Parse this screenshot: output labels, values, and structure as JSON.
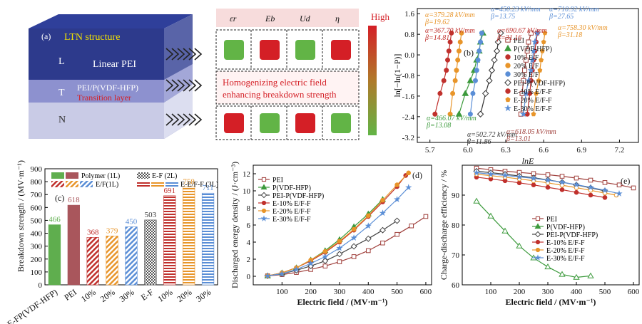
{
  "panel_a": {
    "tag": "(a)",
    "layers": [
      {
        "letter": "L",
        "name": "Linear PEI"
      },
      {
        "letter": "T",
        "name": "PEI/P(VDF-HFP)",
        "sub": "Transition layer"
      },
      {
        "letter": "N",
        "name": ""
      }
    ],
    "structure_label": "LTN structure",
    "params": [
      "εr",
      "Eb",
      "Ud",
      "η"
    ],
    "high_label": "High",
    "message_line1": "Homogenizing electric field",
    "message_line2": "enhancing breakdown strength",
    "rows": [
      [
        "#62b446",
        "#d41f26",
        "#62b446",
        "#d41f26"
      ],
      [
        "#d41f26",
        "#62b446",
        "#d41f26",
        "#62b446"
      ]
    ],
    "colors": {
      "good": "#62b446",
      "bad": "#d41f26",
      "top_face": "#3f4fa8",
      "front_dark": "#2d3a8c"
    }
  },
  "chart_data": [
    {
      "type": "scatter",
      "panel": "(b)",
      "xlabel": "lnE",
      "ylabel": "ln[−ln(1−P)]",
      "xlim": [
        5.6,
        7.35
      ],
      "ylim": [
        -3.4,
        1.8
      ],
      "xticks": [
        "5.7",
        "6.0",
        "6.3",
        "6.6",
        "6.9",
        "7.2"
      ],
      "xtick_values": [
        5.7,
        6.0,
        6.3,
        6.6,
        6.9,
        7.2
      ],
      "yticks": [
        "1.6",
        "0.8",
        "0.0",
        "-0.8",
        "-1.6",
        "-2.4",
        "-3.2"
      ],
      "ytick_values": [
        1.6,
        0.8,
        0.0,
        -0.8,
        -1.6,
        -2.4,
        -3.2
      ],
      "legend": [
        "PEI",
        "P(VDF-HFP)",
        "10% E/F",
        "20% E/F",
        "30% E/F",
        "PEI-P(VDF-HFP)",
        "E-10% E/F-F",
        "E-20% E/F-F",
        "E-30% E/F-F"
      ],
      "series": [
        {
          "name": "PEI",
          "color": "#a0403c",
          "marker": "square",
          "x": [
            6.42,
            6.43,
            6.44,
            6.45,
            6.46,
            6.47,
            6.48,
            6.5
          ],
          "y": [
            -2.3,
            -1.5,
            -1.0,
            -0.6,
            -0.2,
            0.15,
            0.5,
            0.85
          ]
        },
        {
          "name": "P(VDF-HFP)",
          "color": "#3c9a3c",
          "marker": "triangle",
          "x": [
            5.93,
            5.98,
            6.02,
            6.05,
            6.07,
            6.09,
            6.1,
            6.12
          ],
          "y": [
            -2.3,
            -1.5,
            -1.0,
            -0.6,
            -0.2,
            0.15,
            0.5,
            0.85
          ]
        },
        {
          "name": "10% E/F",
          "color": "#c0302c",
          "marker": "circle",
          "x": [
            5.74,
            5.78,
            5.81,
            5.83,
            5.84,
            5.85,
            5.86,
            5.87
          ],
          "y": [
            -2.3,
            -1.5,
            -1.0,
            -0.6,
            -0.2,
            0.15,
            0.5,
            0.85
          ]
        },
        {
          "name": "20% E/F",
          "color": "#e8952a",
          "marker": "circle",
          "x": [
            5.86,
            5.88,
            5.9,
            5.91,
            5.92,
            5.93,
            5.94,
            5.95
          ],
          "y": [
            -2.3,
            -1.5,
            -1.0,
            -0.6,
            -0.2,
            0.15,
            0.5,
            0.85
          ]
        },
        {
          "name": "30% E/F",
          "color": "#5a8ed6",
          "marker": "circle",
          "x": [
            6.02,
            6.04,
            6.06,
            6.07,
            6.08,
            6.09,
            6.1,
            6.11
          ],
          "y": [
            -2.3,
            -1.5,
            -1.0,
            -0.6,
            -0.2,
            0.15,
            0.5,
            0.85
          ]
        },
        {
          "name": "PEI-P(VDF-HFP)",
          "color": "#333333",
          "marker": "diamond",
          "x": [
            6.1,
            6.14,
            6.17,
            6.19,
            6.21,
            6.23,
            6.24,
            6.26
          ],
          "y": [
            -2.3,
            -1.5,
            -1.0,
            -0.6,
            -0.2,
            0.15,
            0.5,
            0.85
          ]
        },
        {
          "name": "E-10% E/F-F",
          "color": "#c0302c",
          "marker": "circle",
          "x": [
            6.47,
            6.49,
            6.5,
            6.51,
            6.52,
            6.53,
            6.54,
            6.55
          ],
          "y": [
            -2.3,
            -1.5,
            -1.0,
            -0.6,
            -0.2,
            0.15,
            0.5,
            0.85
          ]
        },
        {
          "name": "E-20% E/F-F",
          "color": "#e8952a",
          "marker": "pentagon",
          "x": [
            6.52,
            6.54,
            6.56,
            6.57,
            6.58,
            6.59,
            6.6,
            6.61
          ],
          "y": [
            -2.3,
            -1.5,
            -1.0,
            -0.6,
            -0.2,
            0.15,
            0.5,
            0.85
          ]
        },
        {
          "name": "E-30% E/F-F",
          "color": "#5a8ed6",
          "marker": "star",
          "x": [
            6.44,
            6.46,
            6.48,
            6.5,
            6.51,
            6.52,
            6.53,
            6.55
          ],
          "y": [
            -2.3,
            -1.5,
            -1.0,
            -0.6,
            -0.2,
            0.15,
            0.5,
            0.85
          ]
        }
      ],
      "annotations": [
        {
          "a": "α=379.28 kV/mm",
          "b": "β=19.62",
          "color": "#e8952a"
        },
        {
          "a": "α=367.70 kV/mm",
          "b": "β=14.81",
          "color": "#c0302c"
        },
        {
          "a": "α=450.23 kV/mm",
          "b": "β=13.75",
          "color": "#5a8ed6"
        },
        {
          "a": "α=690.67 kV/mm",
          "b": "β=31.16",
          "color": "#c0302c"
        },
        {
          "a": "α=710.92 kV/mm",
          "b": "β=27.65",
          "color": "#5a8ed6"
        },
        {
          "a": "α=758.30 kV/mm",
          "b": "β=31.18",
          "color": "#e8952a"
        },
        {
          "a": "α=466.07 kV/mm",
          "b": "β=13.08",
          "color": "#3c9a3c"
        },
        {
          "a": "α=502.72 kV/mm",
          "b": "β=11.86",
          "color": "#333333"
        },
        {
          "a": "α=618.05 kV/mm",
          "b": "β=13.01",
          "color": "#a0403c"
        }
      ]
    },
    {
      "type": "bar",
      "panel": "(c)",
      "ylabel": "Breakdown strength / (MV·m⁻¹)",
      "ylim": [
        0,
        900
      ],
      "categories": [
        "E-FP(VDF-HFP)",
        "PEI",
        "10%",
        "20%",
        "30%",
        "E-F",
        "10%",
        "20%",
        "30%"
      ],
      "values": [
        466,
        618,
        368,
        379,
        450,
        503,
        691,
        758,
        711
      ],
      "labels": [
        "466",
        "618",
        "368",
        "379",
        "450",
        "503",
        "691",
        "758",
        "711"
      ],
      "colors": [
        "#5fae4e",
        "#a9565c",
        "#c0302c",
        "#e8952a",
        "#5a8ed6",
        "#555555",
        "#c0302c",
        "#e8952a",
        "#5a8ed6"
      ],
      "legend": [
        "Polymer (1L)",
        "E-F (2L)",
        "E/F(1L)",
        "E-E/F-F (3L)"
      ]
    },
    {
      "type": "line",
      "panel": "(d)",
      "xlabel": "Electric field / (MV·m⁻¹)",
      "ylabel": "Discharged energy density / (J·cm⁻³)",
      "xlim": [
        0,
        620
      ],
      "ylim": [
        -1,
        13
      ],
      "xticks": [
        "100",
        "200",
        "300",
        "400",
        "500",
        "600"
      ],
      "yticks": [
        "0",
        "2",
        "4",
        "6",
        "8",
        "10",
        "12"
      ],
      "series": [
        {
          "name": "PEI",
          "color": "#a0403c",
          "marker": "square",
          "x": [
            50,
            100,
            150,
            200,
            250,
            300,
            350,
            400,
            450,
            500,
            550,
            600
          ],
          "y": [
            0.05,
            0.2,
            0.45,
            0.8,
            1.2,
            1.7,
            2.3,
            3.0,
            3.9,
            4.9,
            5.9,
            7.0
          ]
        },
        {
          "name": "P(VDF-HFP)",
          "color": "#3c9a3c",
          "marker": "triangle",
          "x": [
            50,
            100,
            150,
            200,
            250,
            300,
            350,
            400,
            450
          ],
          "y": [
            0.05,
            0.4,
            1.0,
            1.9,
            3.0,
            4.3,
            5.8,
            7.3,
            9.0
          ]
        },
        {
          "name": "PEI-P(VDF-HFP)",
          "color": "#444444",
          "marker": "diamond",
          "x": [
            50,
            100,
            150,
            200,
            250,
            300,
            350,
            400,
            450,
            500
          ],
          "y": [
            0.05,
            0.3,
            0.7,
            1.2,
            1.8,
            2.6,
            3.5,
            4.4,
            5.4,
            6.5
          ]
        },
        {
          "name": "E-10% E/F-F",
          "color": "#c0302c",
          "marker": "circle",
          "x": [
            50,
            100,
            150,
            200,
            250,
            300,
            350,
            400,
            450,
            500,
            530
          ],
          "y": [
            0.05,
            0.4,
            1.0,
            1.8,
            2.8,
            4.0,
            5.4,
            7.0,
            8.7,
            10.5,
            11.8
          ]
        },
        {
          "name": "E-20% E/F-F",
          "color": "#e8952a",
          "marker": "circle",
          "x": [
            50,
            100,
            150,
            200,
            250,
            300,
            350,
            400,
            450,
            500,
            540
          ],
          "y": [
            0.05,
            0.4,
            1.0,
            1.9,
            2.9,
            4.1,
            5.5,
            7.1,
            8.9,
            10.7,
            12.1
          ]
        },
        {
          "name": "E-30% E/F-F",
          "color": "#5a8ed6",
          "marker": "star",
          "x": [
            50,
            100,
            150,
            200,
            250,
            300,
            350,
            400,
            450,
            500,
            540
          ],
          "y": [
            0.05,
            0.3,
            0.8,
            1.5,
            2.3,
            3.3,
            4.5,
            5.9,
            7.4,
            9.0,
            10.4
          ]
        }
      ]
    },
    {
      "type": "line",
      "panel": "(e)",
      "xlabel": "Electric field / (MV·m⁻¹)",
      "ylabel": "Charge-discharge efficiency / %",
      "xlim": [
        0,
        620
      ],
      "ylim": [
        60,
        100
      ],
      "xticks": [
        "100",
        "200",
        "300",
        "400",
        "500",
        "600"
      ],
      "yticks": [
        "60",
        "70",
        "80",
        "90"
      ],
      "series": [
        {
          "name": "PEI",
          "color": "#a0403c",
          "marker": "square",
          "x": [
            50,
            100,
            150,
            200,
            250,
            300,
            350,
            400,
            450,
            500,
            550,
            600
          ],
          "y": [
            99,
            98.5,
            98,
            97.6,
            97.2,
            96.8,
            96.3,
            95.7,
            95.0,
            94.2,
            93.4,
            92.4
          ]
        },
        {
          "name": "P(VDF-HFP)",
          "color": "#3c9a3c",
          "marker": "triangle",
          "x": [
            50,
            100,
            150,
            200,
            250,
            300,
            350,
            400,
            450
          ],
          "y": [
            88,
            83,
            78,
            73,
            69,
            66,
            63.5,
            62.5,
            63
          ]
        },
        {
          "name": "PEI-P(VDF-HFP)",
          "color": "#444444",
          "marker": "diamond",
          "x": [
            50,
            100,
            150,
            200,
            250,
            300,
            350,
            400,
            450,
            500
          ],
          "y": [
            98,
            97.5,
            97,
            96.4,
            95.8,
            95.1,
            94.3,
            93.4,
            92.4,
            91.4
          ]
        },
        {
          "name": "E-10% E/F-F",
          "color": "#c0302c",
          "marker": "circle",
          "x": [
            50,
            100,
            150,
            200,
            250,
            300,
            350,
            400,
            450,
            500
          ],
          "y": [
            96,
            95.4,
            94.8,
            94.1,
            93.4,
            92.6,
            91.8,
            90.9,
            90.0,
            89.2
          ]
        },
        {
          "name": "E-20% E/F-F",
          "color": "#e8952a",
          "marker": "circle",
          "x": [
            50,
            100,
            150,
            200,
            250,
            300,
            350,
            400,
            450,
            500,
            540
          ],
          "y": [
            97,
            96.5,
            96,
            95.4,
            94.8,
            94.1,
            93.3,
            92.5,
            91.6,
            90.7,
            90.0
          ]
        },
        {
          "name": "E-30% E/F-F",
          "color": "#5a8ed6",
          "marker": "star",
          "x": [
            50,
            100,
            150,
            200,
            250,
            300,
            350,
            400,
            450,
            500,
            550
          ],
          "y": [
            97.5,
            97,
            96.6,
            96.1,
            95.6,
            95.0,
            94.3,
            93.5,
            92.6,
            91.6,
            90.5
          ]
        }
      ]
    }
  ]
}
